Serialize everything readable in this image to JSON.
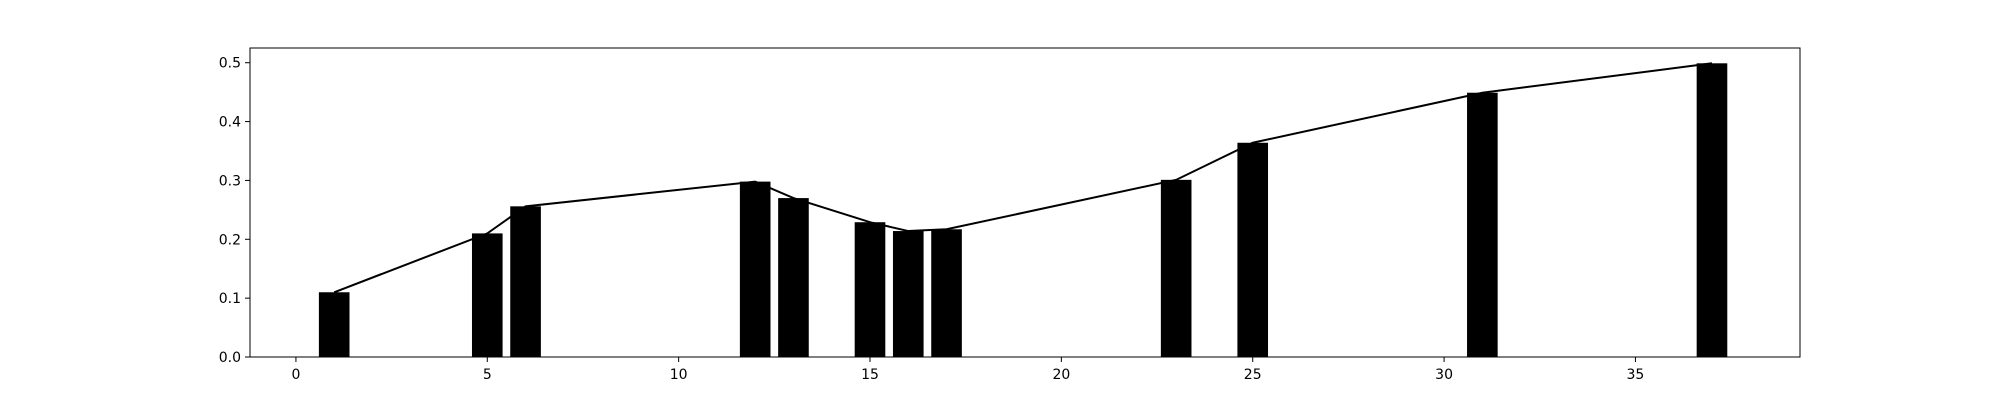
{
  "chart_data": {
    "type": "bar",
    "title": "",
    "xlabel": "",
    "ylabel": "",
    "xlim": [
      -1.2,
      39.3
    ],
    "ylim": [
      0,
      0.525
    ],
    "grid": false,
    "legend": "none",
    "x_ticks": [
      0,
      5,
      10,
      15,
      20,
      25,
      30,
      35
    ],
    "x_tick_labels": [
      "0",
      "5",
      "10",
      "15",
      "20",
      "25",
      "30",
      "35"
    ],
    "y_ticks": [
      0,
      0.1,
      0.2,
      0.3,
      0.4,
      0.5
    ],
    "y_tick_labels": [
      "0.0",
      "0.1",
      "0.2",
      "0.3",
      "0.4",
      "0.5"
    ],
    "bar_color": "#000000",
    "line_color": "#000000",
    "bar_width": 0.8,
    "series": [
      {
        "x": [
          1,
          5,
          6,
          12,
          13,
          15,
          16,
          17,
          23,
          25,
          31,
          37
        ],
        "values": [
          0.11,
          0.21,
          0.256,
          0.298,
          0.27,
          0.229,
          0.214,
          0.217,
          0.301,
          0.364,
          0.449,
          0.499
        ]
      }
    ],
    "line": {
      "x": [
        1,
        5,
        6,
        12,
        13,
        15,
        16,
        17,
        23,
        25,
        31,
        37
      ],
      "values": [
        0.11,
        0.21,
        0.256,
        0.298,
        0.27,
        0.229,
        0.214,
        0.217,
        0.301,
        0.364,
        0.449,
        0.499
      ]
    }
  }
}
